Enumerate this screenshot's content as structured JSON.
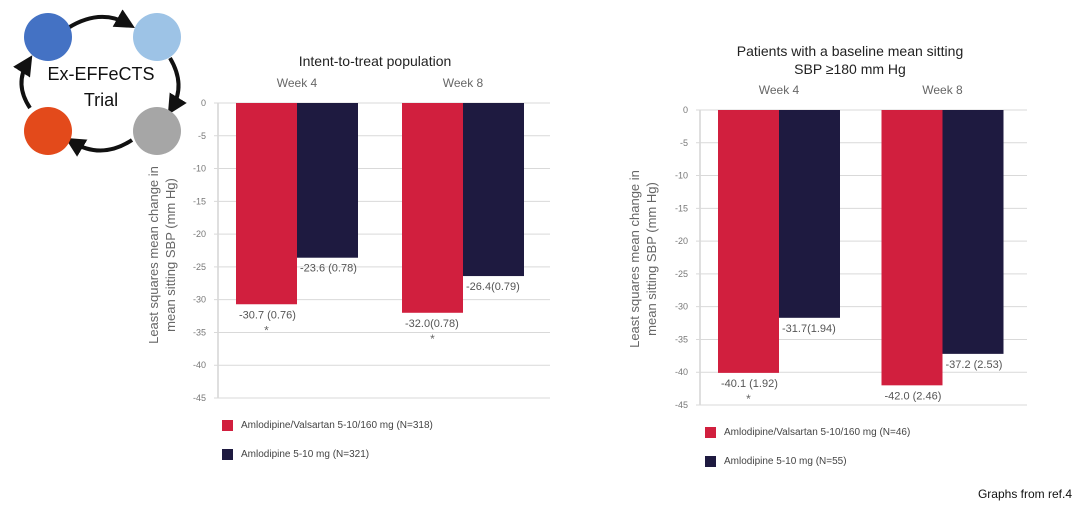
{
  "logo": {
    "line1": "Ex-EFFeCTS",
    "line2": "Trial",
    "circle_colors": [
      "#4472C4",
      "#9DC3E6",
      "#E34A1B",
      "#A6A6A6"
    ]
  },
  "footer": {
    "source": "Graphs from ref.4"
  },
  "colors": {
    "amlodipine_valsartan": "#D11F3E",
    "amlodipine": "#1E1A40"
  },
  "chart_data": [
    {
      "type": "bar",
      "title_lines": [
        "Intent-to-treat population"
      ],
      "ylabel_lines": [
        "Least squares mean change in",
        "mean sitting SBP (mm Hg)"
      ],
      "categories": [
        "Week 4",
        "Week 8"
      ],
      "ylim": [
        -45,
        0
      ],
      "yticks": [
        "0",
        "-5",
        "-10",
        "-15",
        "-20",
        "-25",
        "-30",
        "-35",
        "-40",
        "-45"
      ],
      "grid": true,
      "legend_position": "bottom",
      "series": [
        {
          "name": "Amlodipine/Valsartan 5-10/160 mg (N=318)",
          "color": "#D11F3E",
          "values": [
            -30.7,
            -32.0
          ],
          "labels": [
            "-30.7 (0.76)",
            "-32.0(0.78)"
          ],
          "significance": [
            "*",
            "*"
          ]
        },
        {
          "name": "Amlodipine 5-10 mg (N=321)",
          "color": "#1E1A40",
          "values": [
            -23.6,
            -26.4
          ],
          "labels": [
            "-23.6 (0.78)",
            "-26.4(0.79)"
          ],
          "significance": [
            "",
            ""
          ]
        }
      ]
    },
    {
      "type": "bar",
      "title_lines": [
        "Patients with a baseline mean sitting",
        "SBP ≥180 mm Hg"
      ],
      "ylabel_lines": [
        "Least squares mean change in",
        "mean sitting SBP (mm Hg)"
      ],
      "categories": [
        "Week 4",
        "Week 8"
      ],
      "ylim": [
        -45,
        0
      ],
      "yticks": [
        "0",
        "-5",
        "-10",
        "-15",
        "-20",
        "-25",
        "-30",
        "-35",
        "-40",
        "-45"
      ],
      "grid": true,
      "legend_position": "bottom",
      "series": [
        {
          "name": "Amlodipine/Valsartan 5-10/160 mg (N=46)",
          "color": "#D11F3E",
          "values": [
            -40.1,
            -42.0
          ],
          "labels": [
            "-40.1 (1.92)",
            "-42.0 (2.46)"
          ],
          "significance": [
            "*",
            ""
          ]
        },
        {
          "name": "Amlodipine 5-10 mg (N=55)",
          "color": "#1E1A40",
          "values": [
            -31.7,
            -37.2
          ],
          "labels": [
            "-31.7(1.94)",
            "-37.2 (2.53)"
          ],
          "significance": [
            "",
            ""
          ]
        }
      ]
    }
  ]
}
